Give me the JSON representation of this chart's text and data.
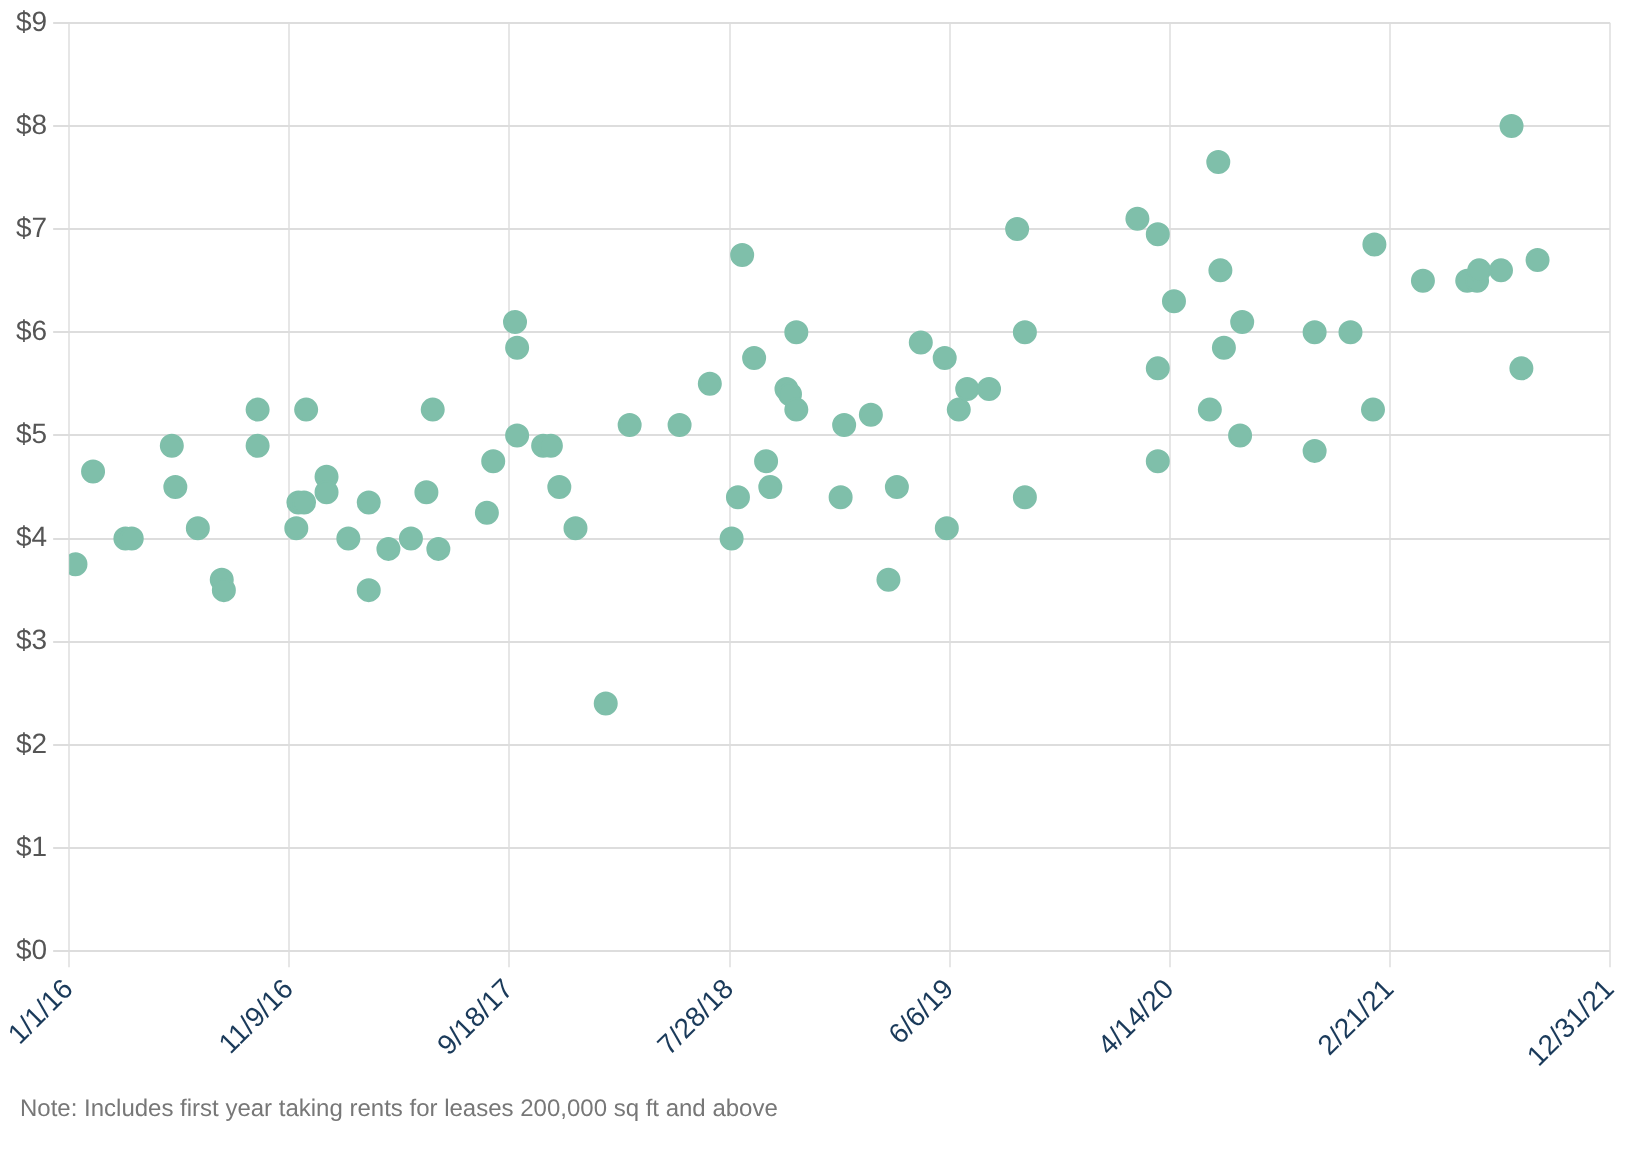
{
  "chart_data": {
    "type": "scatter",
    "color": "#7fbfaa",
    "marker": "circle",
    "grid": true,
    "legend": false,
    "x": [
      "2016-01-10",
      "2016-02-04",
      "2016-03-21",
      "2016-03-30",
      "2016-05-26",
      "2016-05-31",
      "2016-07-02",
      "2016-08-05",
      "2016-08-08",
      "2016-09-25",
      "2016-09-25",
      "2016-11-19",
      "2016-11-22",
      "2016-11-30",
      "2016-12-03",
      "2017-01-01",
      "2017-01-01",
      "2017-02-01",
      "2017-03-02",
      "2017-03-02",
      "2017-03-30",
      "2017-05-01",
      "2017-05-23",
      "2017-06-01",
      "2017-06-09",
      "2017-08-17",
      "2017-08-26",
      "2017-09-26",
      "2017-09-29",
      "2017-09-29",
      "2017-11-05",
      "2017-11-16",
      "2017-11-28",
      "2017-12-21",
      "2018-02-02",
      "2018-03-08",
      "2018-05-18",
      "2018-06-30",
      "2018-07-31",
      "2018-08-09",
      "2018-08-15",
      "2018-09-01",
      "2018-09-18",
      "2018-09-24",
      "2018-10-17",
      "2018-10-22",
      "2018-10-31",
      "2018-10-31",
      "2019-01-02",
      "2019-01-07",
      "2019-02-14",
      "2019-03-11",
      "2019-03-23",
      "2019-04-26",
      "2019-05-30",
      "2019-06-02",
      "2019-06-19",
      "2019-07-01",
      "2019-08-01",
      "2019-09-10",
      "2019-09-21",
      "2019-09-21",
      "2020-02-28",
      "2020-03-28",
      "2020-03-28",
      "2020-03-28",
      "2020-04-20",
      "2020-06-10",
      "2020-06-22",
      "2020-06-25",
      "2020-06-30",
      "2020-07-23",
      "2020-07-26",
      "2020-11-06",
      "2020-11-06",
      "2020-12-27",
      "2021-01-28",
      "2021-01-30",
      "2021-04-09",
      "2021-06-11",
      "2021-06-25",
      "2021-06-28",
      "2021-07-29",
      "2021-08-13",
      "2021-08-27",
      "2021-09-19"
    ],
    "values": [
      3.75,
      4.65,
      4.0,
      4.0,
      4.9,
      4.5,
      4.1,
      3.6,
      3.5,
      5.25,
      4.9,
      4.1,
      4.35,
      4.35,
      5.25,
      4.6,
      4.45,
      4.0,
      3.5,
      4.35,
      3.9,
      4.0,
      4.45,
      5.25,
      3.9,
      4.25,
      4.75,
      6.1,
      5.85,
      5.0,
      4.9,
      4.9,
      4.5,
      4.1,
      2.4,
      5.1,
      5.1,
      5.5,
      4.0,
      4.4,
      6.75,
      5.75,
      4.75,
      4.5,
      5.45,
      5.4,
      5.25,
      6.0,
      4.4,
      5.1,
      5.2,
      3.6,
      4.5,
      5.9,
      5.75,
      4.1,
      5.25,
      5.45,
      5.45,
      7.0,
      6.0,
      4.4,
      7.1,
      6.95,
      5.65,
      4.75,
      6.3,
      5.25,
      7.65,
      6.6,
      5.85,
      5.0,
      6.1,
      6.0,
      4.85,
      6.0,
      5.25,
      6.85,
      6.5,
      6.5,
      6.5,
      6.6,
      6.6,
      8.0,
      5.65,
      6.7
    ],
    "xlim": [
      "2016-01-01",
      "2021-12-31"
    ],
    "xticks": [
      {
        "value": "2016-01-01",
        "label": "1/1/16"
      },
      {
        "value": "2016-11-09",
        "label": "11/9/16"
      },
      {
        "value": "2017-09-18",
        "label": "9/18/17"
      },
      {
        "value": "2018-07-28",
        "label": "7/28/18"
      },
      {
        "value": "2019-06-06",
        "label": "6/6/19"
      },
      {
        "value": "2020-04-14",
        "label": "4/14/20"
      },
      {
        "value": "2021-02-21",
        "label": "2/21/21"
      },
      {
        "value": "2021-12-31",
        "label": "12/31/21"
      }
    ],
    "ylim": [
      0,
      9
    ],
    "yticks": [
      {
        "value": 0,
        "label": "$0"
      },
      {
        "value": 1,
        "label": "$1"
      },
      {
        "value": 2,
        "label": "$2"
      },
      {
        "value": 3,
        "label": "$3"
      },
      {
        "value": 4,
        "label": "$4"
      },
      {
        "value": 5,
        "label": "$5"
      },
      {
        "value": 6,
        "label": "$6"
      },
      {
        "value": 7,
        "label": "$7"
      },
      {
        "value": 8,
        "label": "$8"
      },
      {
        "value": 9,
        "label": "$9"
      }
    ],
    "annotations": [
      "Note: Includes first year taking rents for leases 200,000 sq ft and above"
    ]
  }
}
